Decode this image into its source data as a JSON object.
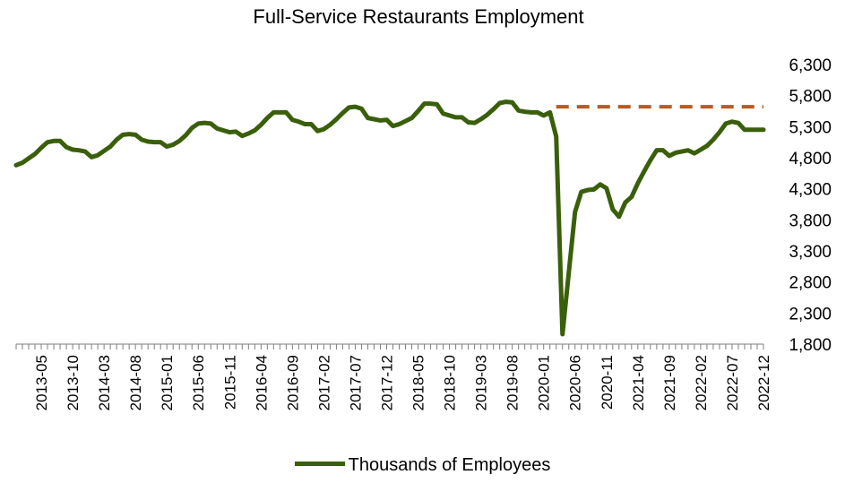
{
  "chart_data": {
    "type": "line",
    "title": "Full-Service Restaurants Employment",
    "xlabel": "",
    "ylabel": "",
    "ylim": [
      1800,
      6300
    ],
    "y_ticks": [
      1800,
      2300,
      2800,
      3300,
      3800,
      4300,
      4800,
      5300,
      5800,
      6300
    ],
    "y_tick_labels": [
      "1,800",
      "2,300",
      "2,800",
      "3,300",
      "3,800",
      "4,300",
      "4,800",
      "5,300",
      "5,800",
      "6,300"
    ],
    "x_tick_labels": [
      "2013-05",
      "2013-10",
      "2014-03",
      "2014-08",
      "2015-01",
      "2015-06",
      "2015-11",
      "2016-04",
      "2016-09",
      "2017-02",
      "2017-07",
      "2017-12",
      "2018-05",
      "2018-10",
      "2019-03",
      "2019-08",
      "2020-01",
      "2020-06",
      "2020-11",
      "2021-04",
      "2021-09",
      "2022-02",
      "2022-07",
      "2022-12"
    ],
    "x_start": "2013-01",
    "x_end": "2022-12",
    "grid": false,
    "legend_position": "bottom",
    "series": [
      {
        "name": "Thousands of Employees",
        "color": "#3a5f0b",
        "values": [
          4680,
          4720,
          4790,
          4860,
          4960,
          5050,
          5070,
          5070,
          4970,
          4930,
          4920,
          4900,
          4810,
          4840,
          4910,
          4980,
          5090,
          5170,
          5180,
          5170,
          5090,
          5060,
          5050,
          5050,
          4980,
          5010,
          5070,
          5160,
          5280,
          5350,
          5360,
          5350,
          5270,
          5240,
          5210,
          5220,
          5150,
          5190,
          5240,
          5330,
          5440,
          5530,
          5530,
          5530,
          5410,
          5380,
          5340,
          5340,
          5230,
          5260,
          5330,
          5420,
          5520,
          5610,
          5620,
          5590,
          5440,
          5420,
          5400,
          5410,
          5310,
          5340,
          5390,
          5440,
          5550,
          5670,
          5670,
          5660,
          5510,
          5480,
          5450,
          5450,
          5370,
          5360,
          5420,
          5490,
          5580,
          5680,
          5700,
          5690,
          5560,
          5540,
          5530,
          5530,
          5480,
          5530,
          5140,
          1960,
          2950,
          3930,
          4250,
          4280,
          4290,
          4370,
          4310,
          3970,
          3850,
          4080,
          4170,
          4390,
          4580,
          4760,
          4920,
          4920,
          4830,
          4880,
          4900,
          4920,
          4870,
          4930,
          4990,
          5090,
          5210,
          5350,
          5380,
          5360,
          5250,
          5250,
          5250,
          5250
        ]
      }
    ],
    "reference_line": {
      "value": 5620,
      "x_start": "2020-03",
      "x_end": "2022-12",
      "color": "#b85a22",
      "style": "dashed"
    }
  }
}
